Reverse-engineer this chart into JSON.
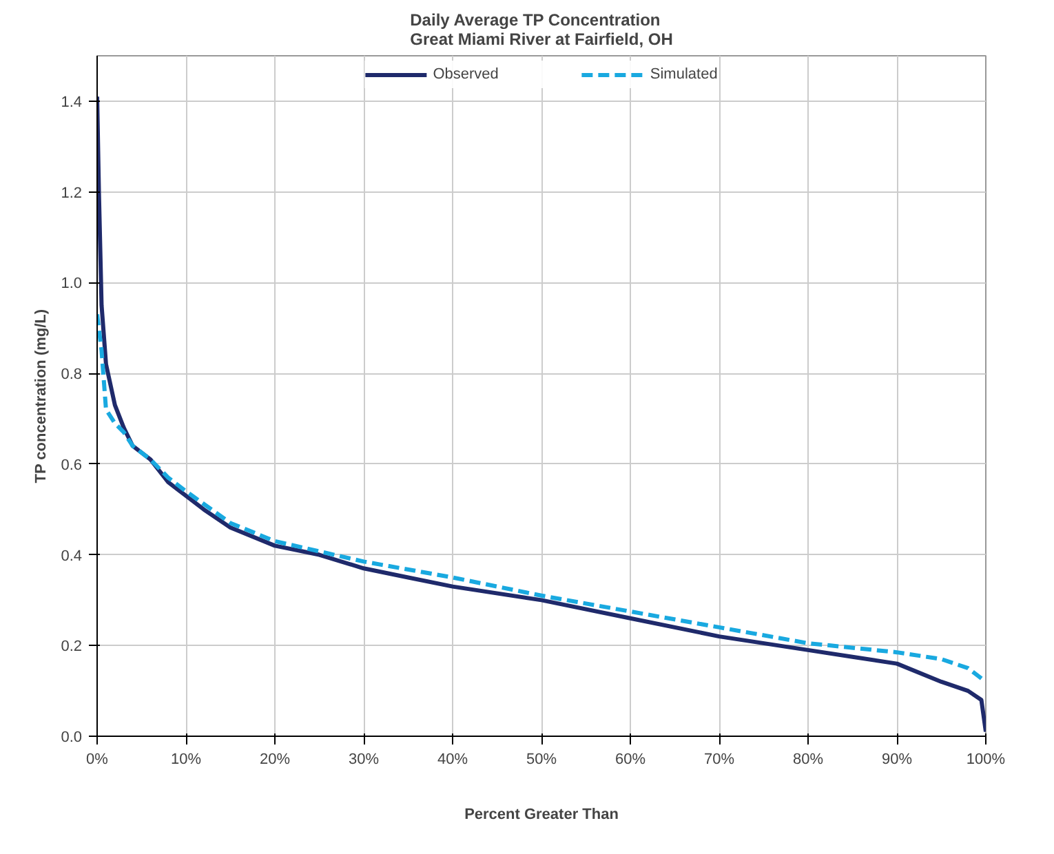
{
  "chart_data": {
    "type": "line",
    "title": "Daily Average TP Concentration\nGreat Miami River at Fairfield, OH",
    "xlabel": "Percent Greater Than",
    "ylabel": "TP concentration (mg/L)",
    "xlim": [
      0,
      100
    ],
    "xticks": [
      {
        "value": 0,
        "label": "0%"
      },
      {
        "value": 10,
        "label": "10%"
      },
      {
        "value": 20,
        "label": "20%"
      },
      {
        "value": 30,
        "label": "30%"
      },
      {
        "value": 40,
        "label": "40%"
      },
      {
        "value": 50,
        "label": "50%"
      },
      {
        "value": 60,
        "label": "60%"
      },
      {
        "value": 70,
        "label": "70%"
      },
      {
        "value": 80,
        "label": "80%"
      },
      {
        "value": 90,
        "label": "90%"
      },
      {
        "value": 100,
        "label": "100%"
      }
    ],
    "ylim": [
      0,
      1.5
    ],
    "yticks": [
      {
        "value": 0,
        "label": "0.0"
      },
      {
        "value": 0.2,
        "label": "0.2"
      },
      {
        "value": 0.4,
        "label": "0.4"
      },
      {
        "value": 0.6,
        "label": "0.6"
      },
      {
        "value": 0.8,
        "label": "0.8"
      },
      {
        "value": 1.0,
        "label": "1.0"
      },
      {
        "value": 1.2,
        "label": "1.2"
      },
      {
        "value": 1.4,
        "label": "1.4"
      }
    ],
    "grid": true,
    "legend": "top",
    "marker": "none",
    "series": [
      {
        "name": "Observed",
        "color": "#1f2a6b",
        "line_style": "solid",
        "x": [
          0,
          0.2,
          0.5,
          1,
          2,
          3,
          4,
          6,
          8,
          10,
          12,
          15,
          20,
          25,
          30,
          35,
          40,
          50,
          60,
          70,
          80,
          85,
          90,
          95,
          98,
          99.5,
          100
        ],
        "values": [
          1.41,
          1.2,
          0.95,
          0.82,
          0.73,
          0.68,
          0.64,
          0.61,
          0.56,
          0.53,
          0.5,
          0.46,
          0.42,
          0.4,
          0.37,
          0.35,
          0.33,
          0.3,
          0.26,
          0.22,
          0.19,
          0.175,
          0.16,
          0.12,
          0.1,
          0.08,
          0.01
        ]
      },
      {
        "name": "Simulated",
        "color": "#19a9e0",
        "line_style": "dashed",
        "x": [
          0,
          0.5,
          1,
          2,
          3,
          4,
          6,
          8,
          10,
          15,
          20,
          30,
          40,
          50,
          60,
          70,
          80,
          90,
          95,
          98,
          100
        ],
        "values": [
          0.93,
          0.85,
          0.72,
          0.69,
          0.67,
          0.64,
          0.61,
          0.57,
          0.54,
          0.47,
          0.43,
          0.385,
          0.35,
          0.31,
          0.275,
          0.24,
          0.205,
          0.185,
          0.17,
          0.15,
          0.12
        ]
      }
    ]
  }
}
